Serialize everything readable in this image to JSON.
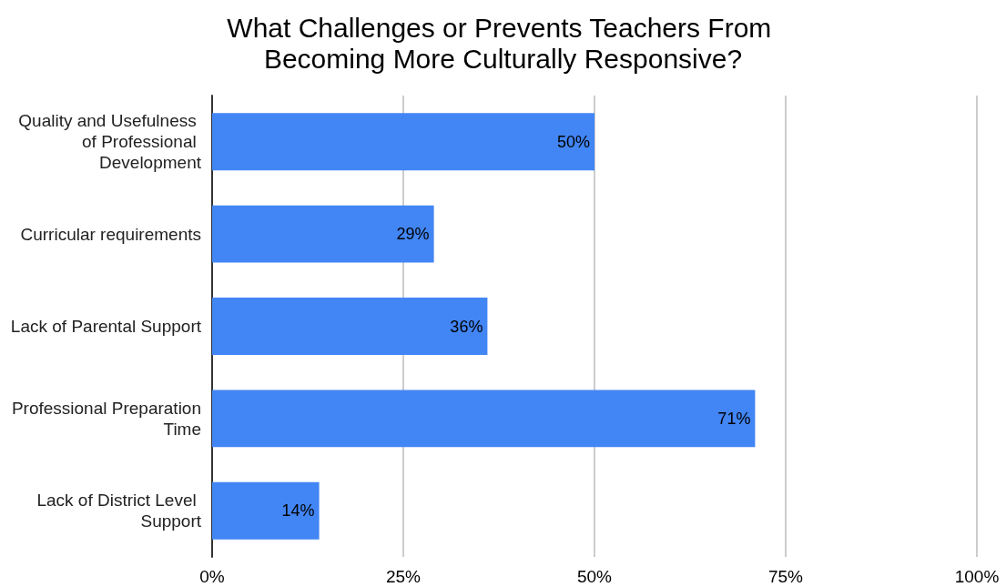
{
  "chart_data": {
    "type": "bar",
    "orientation": "horizontal",
    "title": "What Challenges or Prevents Teachers From Becoming More Culturally Responsive?",
    "categories": [
      "Quality and Usefulness of Professional Development",
      "Curricular requirements",
      "Lack of Parental Support",
      "Professional Preparation Time",
      "Lack of District Level Support"
    ],
    "values": [
      50,
      29,
      36,
      71,
      14
    ],
    "value_labels": [
      "50%",
      "29%",
      "36%",
      "71%",
      "14%"
    ],
    "color": "#4285f4",
    "xlim": [
      0,
      100
    ],
    "xticks": [
      {
        "value": 0,
        "label": "0%"
      },
      {
        "value": 25,
        "label": "25%"
      },
      {
        "value": 50,
        "label": "50%"
      },
      {
        "value": 75,
        "label": "75%"
      },
      {
        "value": 100,
        "label": "100%"
      }
    ],
    "grid": "x"
  }
}
